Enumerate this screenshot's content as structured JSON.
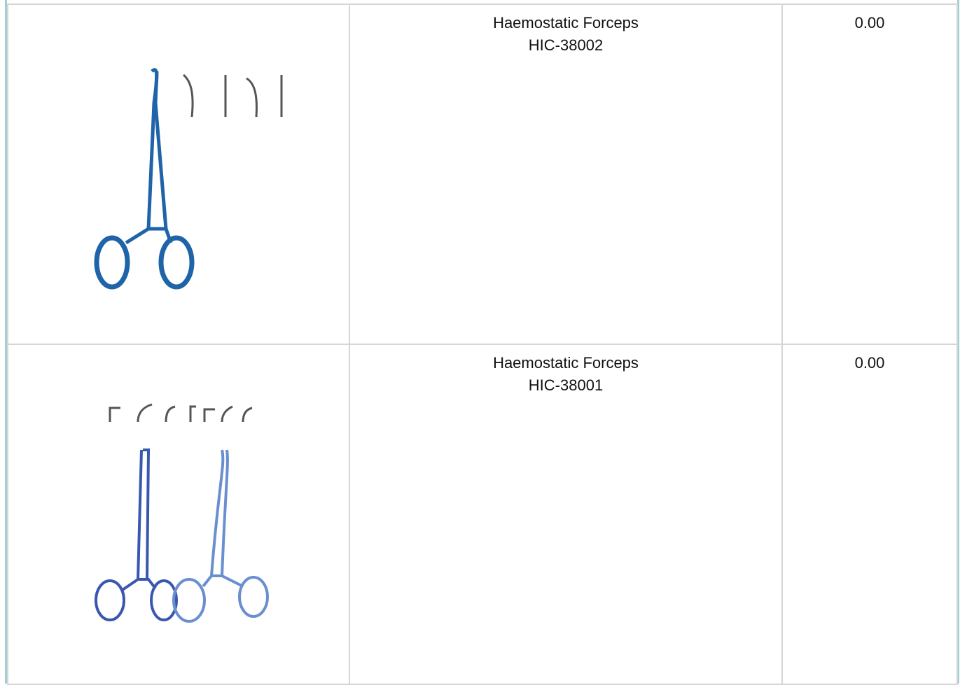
{
  "table": {
    "rows": [
      {
        "name": "Haemostatic Forceps",
        "code": "HIC-38002",
        "price": "0.00"
      },
      {
        "name": "Haemostatic Forceps",
        "code": "HIC-38001",
        "price": "0.00"
      }
    ]
  }
}
